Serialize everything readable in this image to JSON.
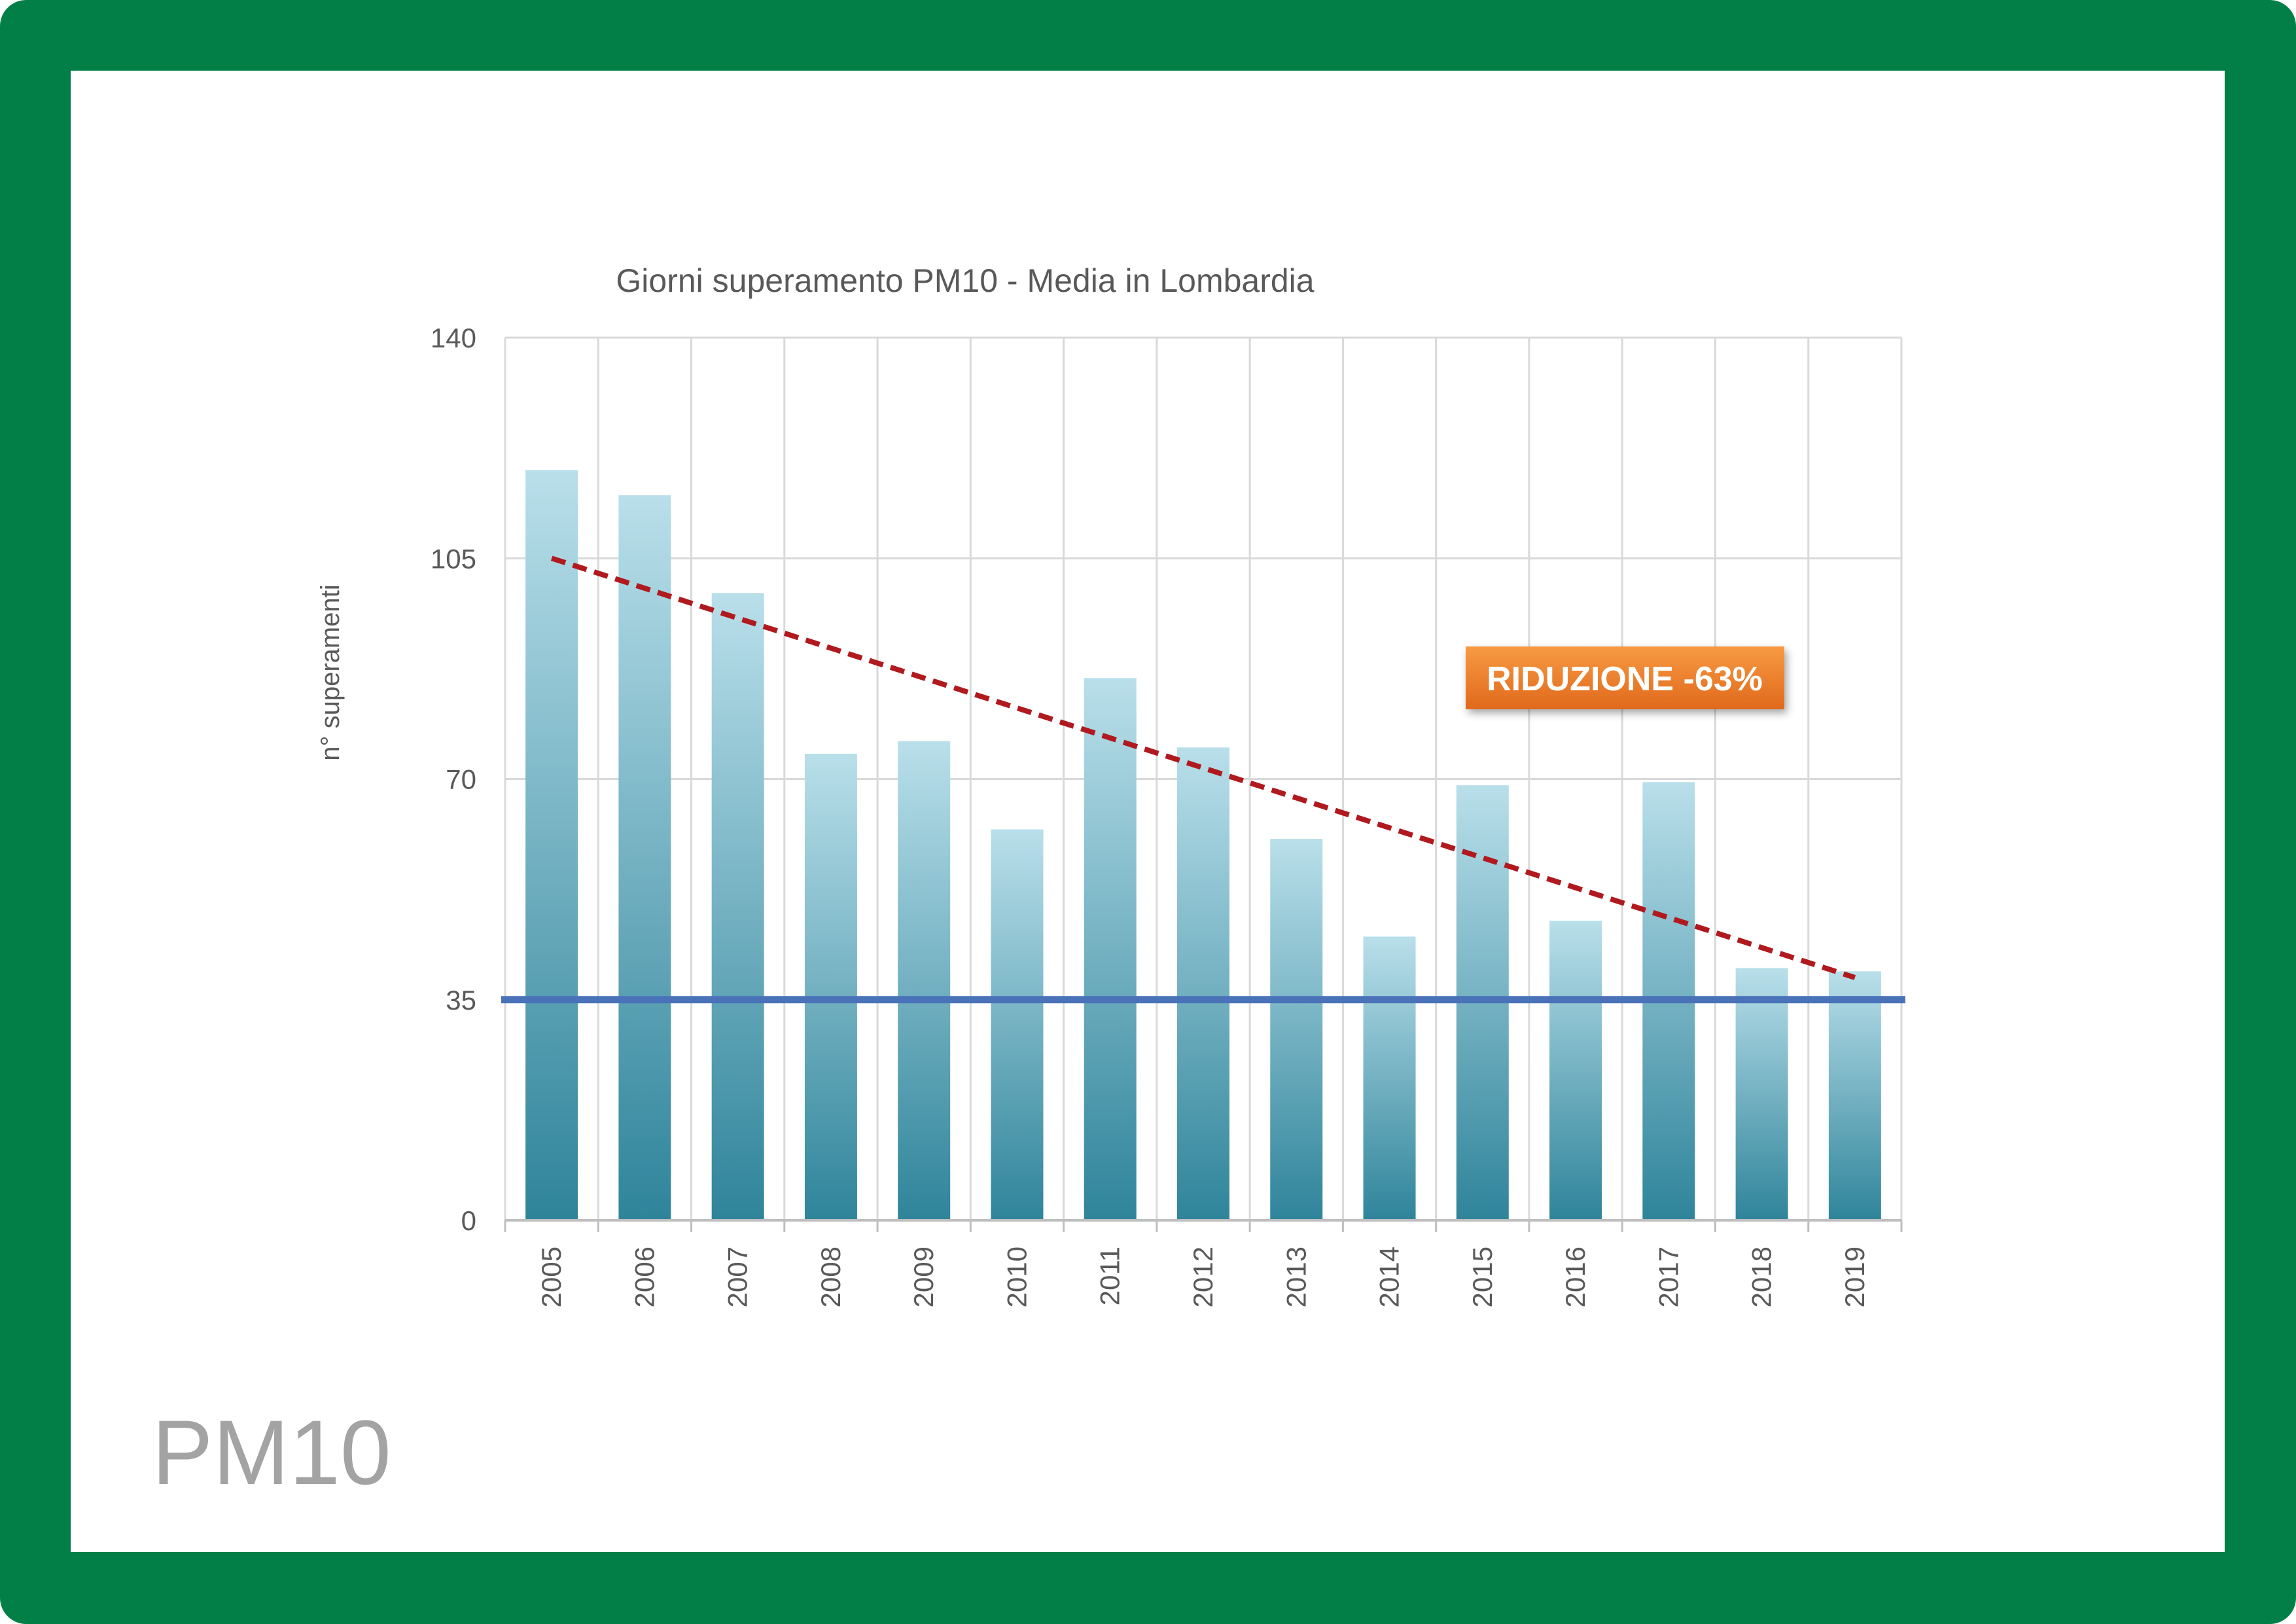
{
  "page_label": "PM10",
  "colors": {
    "frame": "#027f47",
    "bar_top": "#b9dfea",
    "bar_bottom": "#2f849a",
    "trend_line": "#b01a1f",
    "limit_line": "#4a72b8",
    "badge_top": "#f79a43",
    "badge_bottom": "#e0691c",
    "badge_text": "#ffffff",
    "grid": "#d9d9d9",
    "text": "#595959"
  },
  "chart_data": {
    "type": "bar",
    "title": "Giorni superamento PM10 - Media in Lombardia",
    "ylabel": "n° superamenti",
    "xlabel": "",
    "ylim": [
      0,
      140
    ],
    "yticks": [
      0,
      35,
      70,
      105,
      140
    ],
    "grid": true,
    "categories": [
      "2005",
      "2006",
      "2007",
      "2008",
      "2009",
      "2010",
      "2011",
      "2012",
      "2013",
      "2014",
      "2015",
      "2016",
      "2017",
      "2018",
      "2019"
    ],
    "values": [
      119,
      115,
      99.5,
      74,
      76,
      62,
      86,
      75,
      60.5,
      45,
      69,
      47.5,
      69.5,
      40,
      39.5
    ],
    "trend_line": {
      "start": [
        2005,
        105
      ],
      "end": [
        2019,
        38.5
      ],
      "style": "dashed"
    },
    "limit_line": {
      "value": 35
    },
    "annotation": "RIDUZIONE -63%"
  }
}
